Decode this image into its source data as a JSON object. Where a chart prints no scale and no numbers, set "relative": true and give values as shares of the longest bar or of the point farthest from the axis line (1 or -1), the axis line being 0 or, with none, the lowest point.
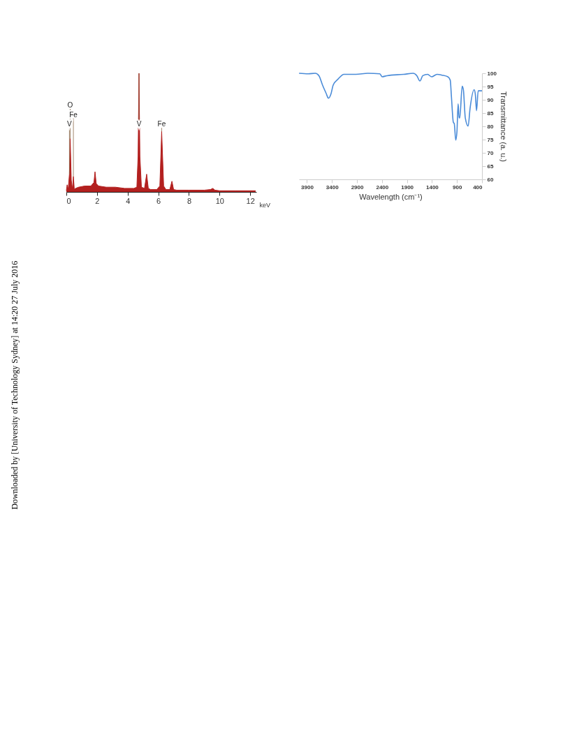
{
  "chart_data": [
    {
      "type": "area",
      "relative": true,
      "xlabel": "keV",
      "xlim": [
        0,
        12.4
      ],
      "xticks": [
        0,
        2,
        4,
        6,
        8,
        10,
        12
      ],
      "grid": false,
      "annotations": [
        {
          "text": "V",
          "x": 0.2,
          "y": 0.15
        },
        {
          "text": "Fe",
          "x": 0.46,
          "y": 0.13
        },
        {
          "text": "O",
          "x": 0.25,
          "y": 0.45
        },
        {
          "text": "V",
          "x": 4.74,
          "y": 1
        },
        {
          "text": "Fe",
          "x": 6.22,
          "y": 0.51
        },
        "Downloaded by [University of Technology Sydney] at 14:20 27 July 2016"
      ],
      "series": [
        {
          "color": "#b3201f",
          "x": [
            0,
            0.05,
            0.12,
            0.2,
            0.25,
            0.32,
            0.4,
            0.46,
            0.52,
            0.6,
            0.8,
            1.2,
            1.6,
            1.8,
            1.87,
            1.95,
            2.1,
            2.6,
            3.2,
            3.8,
            4.4,
            4.6,
            4.68,
            4.74,
            4.8,
            4.9,
            5.1,
            5.24,
            5.35,
            5.5,
            5.9,
            6.1,
            6.22,
            6.35,
            6.5,
            6.75,
            6.89,
            7.0,
            7.2,
            8,
            9,
            9.4,
            9.56,
            9.7,
            10,
            11,
            12.35
          ],
          "values": [
            0.01,
            0.06,
            0.02,
            0.15,
            0.45,
            0.1,
            0.02,
            0.13,
            0.02,
            0.03,
            0.04,
            0.05,
            0.05,
            0.08,
            0.17,
            0.07,
            0.05,
            0.04,
            0.04,
            0.03,
            0.03,
            0.04,
            0.3,
            1,
            0.3,
            0.04,
            0.03,
            0.15,
            0.03,
            0.02,
            0.02,
            0.05,
            0.51,
            0.05,
            0.02,
            0.02,
            0.09,
            0.02,
            0.015,
            0.015,
            0.015,
            0.02,
            0.03,
            0.015,
            0.01,
            0.01,
            0.01
          ]
        }
      ]
    },
    {
      "type": "line",
      "xlabel": "Wavelength (cm⁻¹)",
      "ylabel": "Transmittance (a. u.)",
      "xlim": [
        4060,
        400
      ],
      "xticks": [
        3900,
        3400,
        2900,
        2400,
        1900,
        1400,
        900,
        400
      ],
      "ylim": [
        60,
        100
      ],
      "yticks": [
        60,
        65,
        70,
        75,
        80,
        85,
        90,
        95,
        100
      ],
      "grid": false,
      "series": [
        {
          "color": "#4a8bd8",
          "x": [
            4058,
            3876,
            3733,
            3661,
            3590,
            3518,
            3470,
            3422,
            3375,
            3279,
            3160,
            2921,
            2682,
            2443,
            2396,
            2300,
            1966,
            1775,
            1703,
            1641,
            1584,
            1488,
            1407,
            1298,
            1202,
            1083,
            1035,
            1011,
            973,
            954,
            925,
            901,
            877,
            858,
            844,
            796,
            772,
            734,
            677,
            638,
            557,
            533,
            509,
            476,
            400
          ],
          "values": [
            100,
            99.8,
            100,
            99.1,
            95.6,
            92.5,
            90.6,
            92.1,
            95.6,
            97.8,
            99.6,
            99.6,
            100,
            99.8,
            98.7,
            99.1,
            99.6,
            100,
            99.1,
            97.1,
            99.1,
            99.6,
            98.7,
            99.6,
            99.3,
            98.7,
            97.4,
            91.2,
            81.5,
            81,
            74.8,
            77.9,
            88.5,
            83.2,
            83.2,
            95.1,
            93.8,
            83.2,
            80.1,
            86.8,
            93.8,
            92.1,
            85.9,
            93.4,
            93.4
          ]
        }
      ]
    }
  ]
}
